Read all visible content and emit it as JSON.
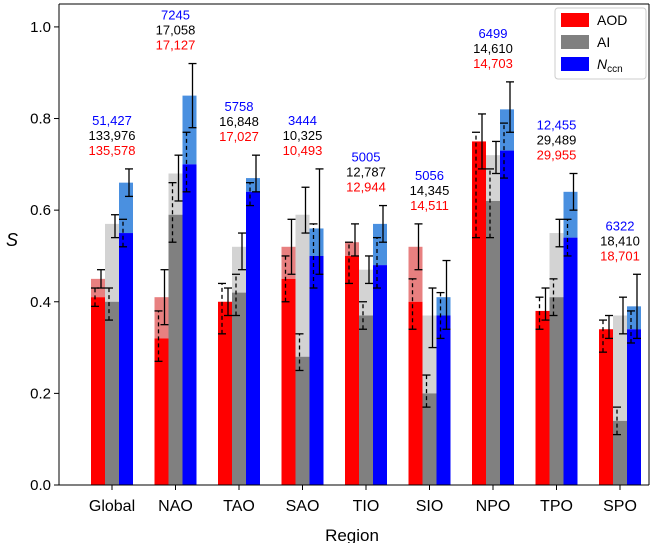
{
  "chart_data": {
    "type": "bar",
    "title": "",
    "xlabel": "Region",
    "ylabel": "S",
    "ylim": [
      0.0,
      1.05
    ],
    "yticks": [
      0.0,
      0.2,
      0.4,
      0.6,
      0.8,
      1.0
    ],
    "ytick_labels": [
      "0.0",
      "0.2",
      "0.4",
      "0.6",
      "0.8",
      "1.0"
    ],
    "grid": false,
    "legend_position": "top-right",
    "categories": [
      "Global",
      "NAO",
      "TAO",
      "SAO",
      "TIO",
      "SIO",
      "NPO",
      "TPO",
      "SPO"
    ],
    "colors": {
      "AOD": "#ff0000",
      "AOD_light": "#e88080",
      "AI": "#808080",
      "AI_light": "#d3d3d3",
      "Nccn": "#0000ff",
      "Nccn_light": "#4a90e0",
      "count_blue": "#0000ff",
      "count_black": "#000000",
      "count_red": "#ff0000"
    },
    "series": [
      {
        "name": "AOD",
        "legend_label": "AOD",
        "values": [
          0.41,
          0.32,
          0.4,
          0.45,
          0.5,
          0.4,
          0.75,
          0.38,
          0.34
        ],
        "light_values": [
          0.45,
          0.41,
          0.4,
          0.52,
          0.53,
          0.52,
          0.75,
          0.38,
          0.34
        ],
        "err": [
          [
            0.39,
            0.43
          ],
          [
            0.27,
            0.38
          ],
          [
            0.33,
            0.44
          ],
          [
            0.4,
            0.5
          ],
          [
            0.44,
            0.53
          ],
          [
            0.34,
            0.45
          ],
          [
            0.54,
            0.77
          ],
          [
            0.34,
            0.41
          ],
          [
            0.29,
            0.36
          ]
        ],
        "err_light": [
          [
            0.43,
            0.47
          ],
          [
            0.35,
            0.47
          ],
          [
            0.37,
            0.43
          ],
          [
            0.46,
            0.58
          ],
          [
            0.5,
            0.57
          ],
          [
            0.47,
            0.57
          ],
          [
            0.69,
            0.81
          ],
          [
            0.36,
            0.43
          ],
          [
            0.32,
            0.37
          ]
        ]
      },
      {
        "name": "AI",
        "legend_label": "AI",
        "values": [
          0.4,
          0.59,
          0.42,
          0.28,
          0.37,
          0.2,
          0.62,
          0.41,
          0.14
        ],
        "light_values": [
          0.57,
          0.68,
          0.52,
          0.59,
          0.47,
          0.37,
          0.72,
          0.55,
          0.37
        ],
        "err": [
          [
            0.36,
            0.43
          ],
          [
            0.53,
            0.66
          ],
          [
            0.37,
            0.46
          ],
          [
            0.25,
            0.33
          ],
          [
            0.34,
            0.4
          ],
          [
            0.17,
            0.24
          ],
          [
            0.54,
            0.69
          ],
          [
            0.37,
            0.45
          ],
          [
            0.11,
            0.17
          ]
        ],
        "err_light": [
          [
            0.54,
            0.59
          ],
          [
            0.62,
            0.72
          ],
          [
            0.47,
            0.55
          ],
          [
            0.55,
            0.65
          ],
          [
            0.44,
            0.5
          ],
          [
            0.3,
            0.43
          ],
          [
            0.68,
            0.75
          ],
          [
            0.52,
            0.58
          ],
          [
            0.33,
            0.41
          ]
        ]
      },
      {
        "name": "Nccn",
        "legend_label": "N",
        "legend_sub": "ccn",
        "values": [
          0.55,
          0.7,
          0.64,
          0.5,
          0.48,
          0.37,
          0.73,
          0.54,
          0.34
        ],
        "light_values": [
          0.66,
          0.85,
          0.67,
          0.56,
          0.57,
          0.41,
          0.82,
          0.64,
          0.39
        ],
        "err": [
          [
            0.52,
            0.58
          ],
          [
            0.64,
            0.77
          ],
          [
            0.61,
            0.66
          ],
          [
            0.43,
            0.57
          ],
          [
            0.43,
            0.54
          ],
          [
            0.32,
            0.42
          ],
          [
            0.67,
            0.79
          ],
          [
            0.5,
            0.58
          ],
          [
            0.31,
            0.38
          ]
        ],
        "err_light": [
          [
            0.63,
            0.69
          ],
          [
            0.78,
            0.92
          ],
          [
            0.64,
            0.72
          ],
          [
            0.46,
            0.69
          ],
          [
            0.53,
            0.61
          ],
          [
            0.34,
            0.49
          ],
          [
            0.77,
            0.88
          ],
          [
            0.6,
            0.68
          ],
          [
            0.32,
            0.46
          ]
        ]
      }
    ],
    "annotations": [
      {
        "region": "Global",
        "blue": "51,427",
        "black": "133,976",
        "red": "135,578"
      },
      {
        "region": "NAO",
        "blue": "7245",
        "black": "17,058",
        "red": "17,127"
      },
      {
        "region": "TAO",
        "blue": "5758",
        "black": "16,848",
        "red": "17,027"
      },
      {
        "region": "SAO",
        "blue": "3444",
        "black": "10,325",
        "red": "10,493"
      },
      {
        "region": "TIO",
        "blue": "5005",
        "black": "12,787",
        "red": "12,944"
      },
      {
        "region": "SIO",
        "blue": "5056",
        "black": "14,345",
        "red": "14,511"
      },
      {
        "region": "NPO",
        "blue": "6499",
        "black": "14,610",
        "red": "14,703"
      },
      {
        "region": "TPO",
        "blue": "12,455",
        "black": "29,489",
        "red": "29,955"
      },
      {
        "region": "SPO",
        "blue": "6322",
        "black": "18,410",
        "red": "18,701"
      }
    ]
  }
}
